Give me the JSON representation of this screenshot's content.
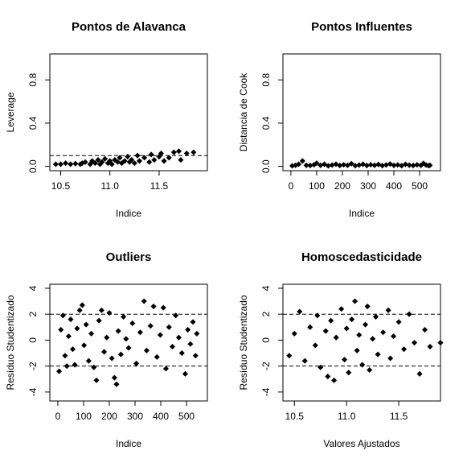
{
  "chart_data": [
    {
      "type": "scatter",
      "title": "Pontos de Alavanca",
      "xlabel": "Indice",
      "ylabel": "Leverage",
      "xlim": [
        10.39,
        11.99
      ],
      "ylim": [
        -0.04,
        1.04
      ],
      "xticks": [
        10.5,
        {
          "value": 11,
          "label": "11.0"
        },
        11.5
      ],
      "yticks": [
        {
          "value": 0,
          "label": "0.0"
        },
        0.4,
        0.8
      ],
      "hlines": [
        0.1
      ],
      "color": "#000000",
      "x": [
        10.45,
        10.5,
        10.55,
        10.6,
        10.65,
        10.7,
        10.72,
        10.75,
        10.8,
        10.82,
        10.85,
        10.88,
        10.9,
        10.92,
        10.95,
        10.98,
        11.0,
        11.02,
        11.05,
        11.08,
        11.1,
        11.12,
        11.15,
        11.18,
        11.2,
        11.22,
        11.25,
        11.28,
        11.3,
        11.35,
        11.4,
        11.42,
        11.45,
        11.5,
        11.52,
        11.55,
        11.6,
        11.65,
        11.7,
        11.72,
        11.78,
        11.85
      ],
      "values": [
        0.02,
        0.02,
        0.03,
        0.02,
        0.025,
        0.02,
        0.03,
        0.04,
        0.02,
        0.05,
        0.03,
        0.06,
        0.02,
        0.04,
        0.07,
        0.03,
        0.05,
        0.02,
        0.06,
        0.04,
        0.08,
        0.03,
        0.05,
        0.09,
        0.04,
        0.06,
        0.03,
        0.1,
        0.05,
        0.08,
        0.04,
        0.11,
        0.06,
        0.09,
        0.12,
        0.05,
        0.08,
        0.13,
        0.14,
        0.06,
        0.12,
        0.13
      ]
    },
    {
      "type": "scatter",
      "title": "Pontos Influentes",
      "xlabel": "Indice",
      "ylabel": "Distancia de Cook",
      "xlim": [
        -31,
        581
      ],
      "ylim": [
        -0.04,
        1.04
      ],
      "xticks": [
        0,
        100,
        200,
        300,
        400,
        500
      ],
      "yticks": [
        {
          "value": 0,
          "label": "0.0"
        },
        0.4,
        0.8
      ],
      "hlines": [],
      "color": "#000000",
      "x": [
        5,
        18,
        30,
        45,
        60,
        75,
        90,
        100,
        115,
        130,
        145,
        160,
        175,
        190,
        205,
        220,
        235,
        250,
        265,
        280,
        295,
        310,
        325,
        340,
        355,
        370,
        385,
        400,
        415,
        430,
        445,
        460,
        475,
        490,
        505,
        515,
        525,
        535,
        540
      ],
      "values": [
        0.005,
        0.01,
        0.02,
        0.05,
        0.01,
        0.008,
        0.015,
        0.03,
        0.01,
        0.02,
        0.005,
        0.012,
        0.02,
        0.008,
        0.015,
        0.01,
        0.025,
        0.006,
        0.012,
        0.02,
        0.008,
        0.015,
        0.01,
        0.018,
        0.007,
        0.013,
        0.022,
        0.009,
        0.014,
        0.006,
        0.019,
        0.011,
        0.008,
        0.015,
        0.01,
        0.028,
        0.012,
        0.007,
        0.01
      ]
    },
    {
      "type": "scatter",
      "title": "Outliers",
      "xlabel": "Indice",
      "ylabel": "Resíduo Studentizado",
      "xlim": [
        -31,
        581
      ],
      "ylim": [
        -4.69,
        4.31
      ],
      "xticks": [
        0,
        100,
        200,
        300,
        400,
        500
      ],
      "yticks": [
        -4,
        -2,
        0,
        2,
        4
      ],
      "hlines": [
        -2,
        2
      ],
      "color": "#000000",
      "x": [
        5,
        12,
        20,
        28,
        35,
        42,
        50,
        58,
        66,
        75,
        85,
        95,
        102,
        110,
        120,
        130,
        140,
        150,
        160,
        170,
        180,
        190,
        200,
        210,
        220,
        228,
        235,
        245,
        255,
        265,
        275,
        290,
        305,
        320,
        335,
        345,
        360,
        372,
        385,
        398,
        410,
        420,
        432,
        445,
        458,
        470,
        482,
        495,
        505,
        515,
        525,
        535,
        540
      ],
      "values": [
        -2.4,
        0.8,
        1.9,
        -1.2,
        -2.0,
        0.3,
        1.6,
        -0.7,
        -1.9,
        0.9,
        2.3,
        2.7,
        -0.4,
        1.2,
        -1.6,
        0.5,
        -2.1,
        -3.1,
        1.5,
        2.3,
        -0.9,
        0.2,
        2.1,
        -1.4,
        -2.9,
        -3.4,
        0.7,
        -1.1,
        1.8,
        0.1,
        -0.6,
        1.3,
        -1.8,
        0.6,
        3.0,
        -0.8,
        1.1,
        2.6,
        -1.3,
        0.4,
        2.5,
        -2.2,
        1.0,
        -0.5,
        1.9,
        0.2,
        -1.0,
        -2.6,
        0.8,
        -0.3,
        1.4,
        -1.2,
        0.5
      ]
    },
    {
      "type": "scatter",
      "title": "Homoscedasticidade",
      "xlabel": "Valores Ajustados",
      "ylabel": "Resíduo Studentizado",
      "xlim": [
        10.39,
        11.9
      ],
      "ylim": [
        -4.69,
        4.31
      ],
      "xticks": [
        10.5,
        {
          "value": 11,
          "label": "11.0"
        },
        11.5
      ],
      "yticks": [
        -4,
        -2,
        0,
        2,
        4
      ],
      "hlines": [
        -2,
        2
      ],
      "color": "#000000",
      "x": [
        10.45,
        10.5,
        10.55,
        10.6,
        10.65,
        10.7,
        10.72,
        10.75,
        10.8,
        10.82,
        10.85,
        10.88,
        10.9,
        10.95,
        10.98,
        11.0,
        11.02,
        11.05,
        11.08,
        11.1,
        11.12,
        11.15,
        11.18,
        11.2,
        11.22,
        11.25,
        11.28,
        11.3,
        11.35,
        11.4,
        11.42,
        11.45,
        11.5,
        11.55,
        11.6,
        11.65,
        11.7,
        11.75,
        11.8,
        11.9
      ],
      "values": [
        -1.2,
        0.5,
        2.2,
        -1.6,
        1.0,
        -0.4,
        1.9,
        -2.1,
        0.7,
        -2.8,
        1.5,
        -3.1,
        0.2,
        2.4,
        -1.5,
        0.9,
        -2.5,
        1.6,
        3.0,
        -0.8,
        0.4,
        -1.9,
        1.2,
        2.6,
        -2.3,
        0.1,
        1.8,
        -1.1,
        0.6,
        2.3,
        -1.4,
        0.3,
        1.4,
        -0.7,
        2.0,
        -0.2,
        -2.6,
        0.8,
        -0.5,
        -0.2
      ]
    }
  ]
}
